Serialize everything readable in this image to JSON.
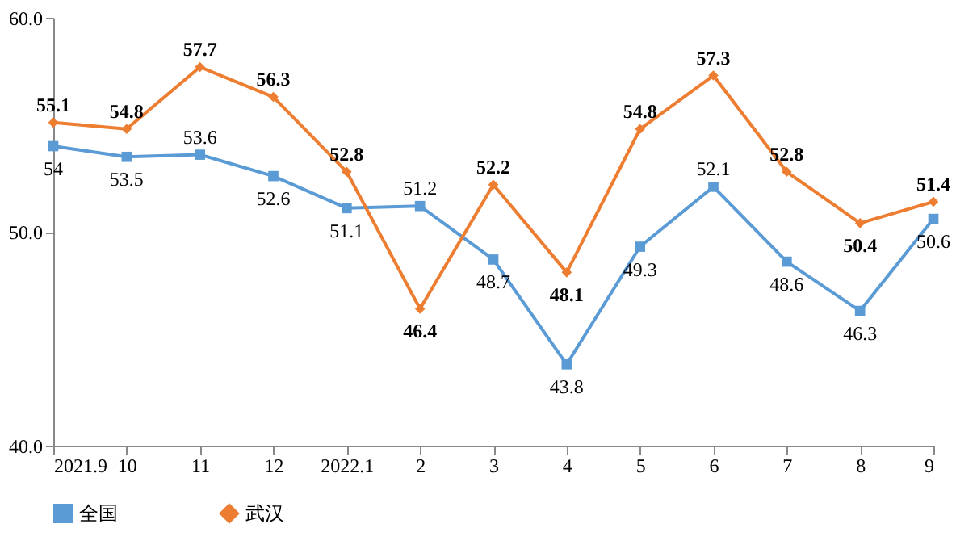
{
  "chart_data": {
    "type": "line",
    "categories": [
      "2021.9",
      "10",
      "11",
      "12",
      "2022.1",
      "2",
      "3",
      "4",
      "5",
      "6",
      "7",
      "8",
      "9"
    ],
    "series": [
      {
        "name": "全国",
        "color": "#5b9bd5",
        "marker": "square",
        "values": [
          54,
          53.5,
          53.6,
          52.6,
          51.1,
          51.2,
          48.7,
          43.8,
          49.3,
          52.1,
          48.6,
          46.3,
          50.6
        ]
      },
      {
        "name": "武汉",
        "color": "#ed7d31",
        "marker": "diamond",
        "values": [
          55.1,
          54.8,
          57.7,
          56.3,
          52.8,
          46.4,
          52.2,
          48.1,
          54.8,
          57.3,
          52.8,
          50.4,
          51.4
        ]
      }
    ],
    "ylim": [
      40,
      60
    ],
    "yticks": [
      {
        "value": 40,
        "label": "40.0"
      },
      {
        "value": 50,
        "label": "50.0"
      },
      {
        "value": 60,
        "label": "60.0"
      }
    ],
    "grid": false,
    "legend": "bottom",
    "data_labels": true,
    "line_style": "solid"
  }
}
